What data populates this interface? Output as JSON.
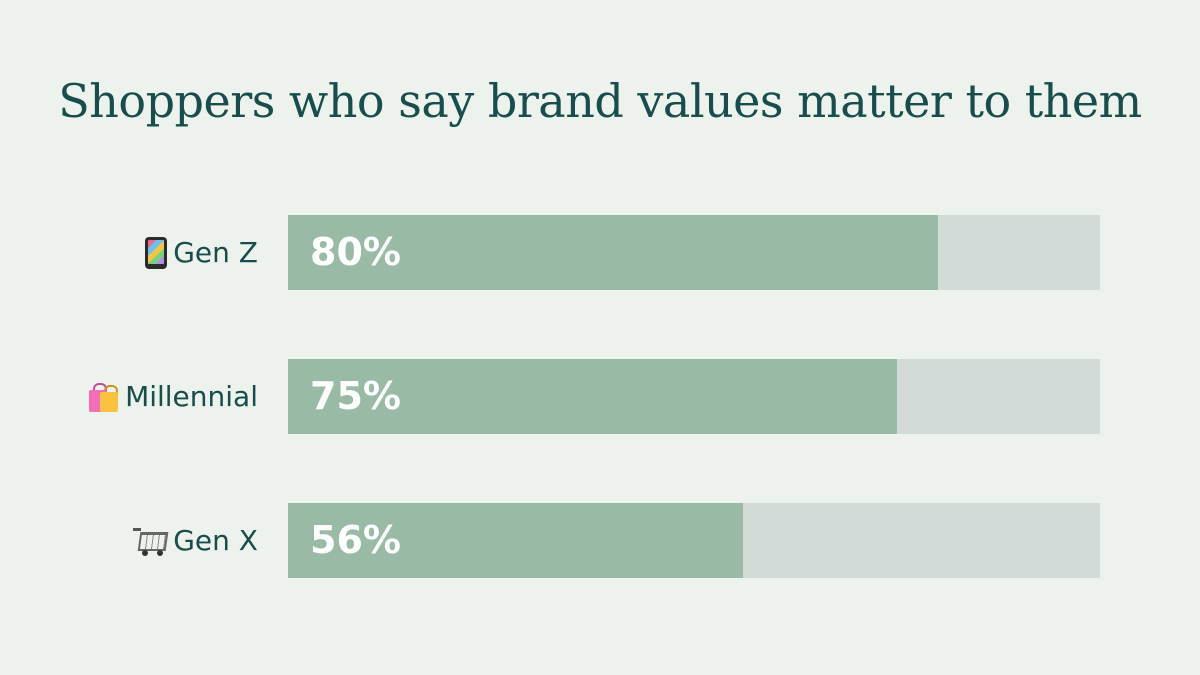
{
  "chart_data": {
    "type": "bar",
    "orientation": "horizontal",
    "title": "Shoppers who say brand values matter to them",
    "categories": [
      "Gen Z",
      "Millennial",
      "Gen X"
    ],
    "category_icons": [
      "mobile-phone-icon",
      "shopping-bags-icon",
      "shopping-cart-icon"
    ],
    "values": [
      80,
      75,
      56
    ],
    "value_labels": [
      "80%",
      "75%",
      "56%"
    ],
    "xlim": [
      0,
      100
    ],
    "unit": "%",
    "grid": false,
    "legend": "none",
    "colors": {
      "fill": "#99bba6",
      "track": "#d3dbd9",
      "text": "#174d4c",
      "background": "#edf3ec"
    }
  }
}
